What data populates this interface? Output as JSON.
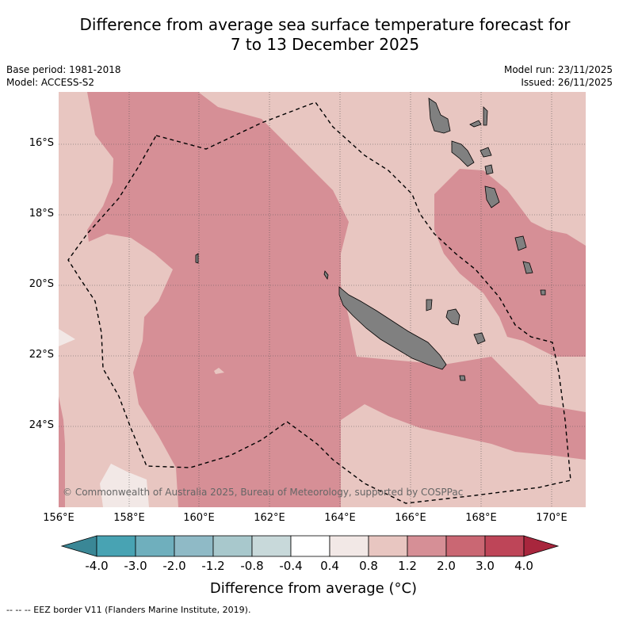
{
  "title_line1": "Difference from average sea surface temperature forecast for",
  "title_line2": "7 to 13 December 2025",
  "base_period": "Base period: 1981-2018",
  "model": "Model: ACCESS-S2",
  "model_run": "Model run: 23/11/2025",
  "issued": "Issued: 26/11/2025",
  "copyright": "© Commonwealth of Australia 2025, Bureau of Meteorology, supported by COSPPac",
  "x_ticks": [
    "156°E",
    "158°E",
    "160°E",
    "162°E",
    "164°E",
    "166°E",
    "168°E",
    "170°E"
  ],
  "y_ticks": [
    "16°S",
    "18°S",
    "20°S",
    "22°S",
    "24°S"
  ],
  "colorbar": {
    "title": "Difference from average (°C)",
    "labels": [
      "-4.0",
      "-3.0",
      "-2.0",
      "-1.2",
      "-0.8",
      "-0.4",
      "0.4",
      "0.8",
      "1.2",
      "2.0",
      "3.0",
      "4.0"
    ],
    "colors": [
      "#3a8796",
      "#48a3b3",
      "#6fafbd",
      "#8fbac6",
      "#a8c8cc",
      "#c8d9da",
      "#ffffff",
      "#f2e8e6",
      "#e8c6c1",
      "#d68f96",
      "#ca6773",
      "#be4558",
      "#a8263d"
    ]
  },
  "footer": "--  --  -- EEZ border V11 (Flanders Marine Institute, 2019)."
}
